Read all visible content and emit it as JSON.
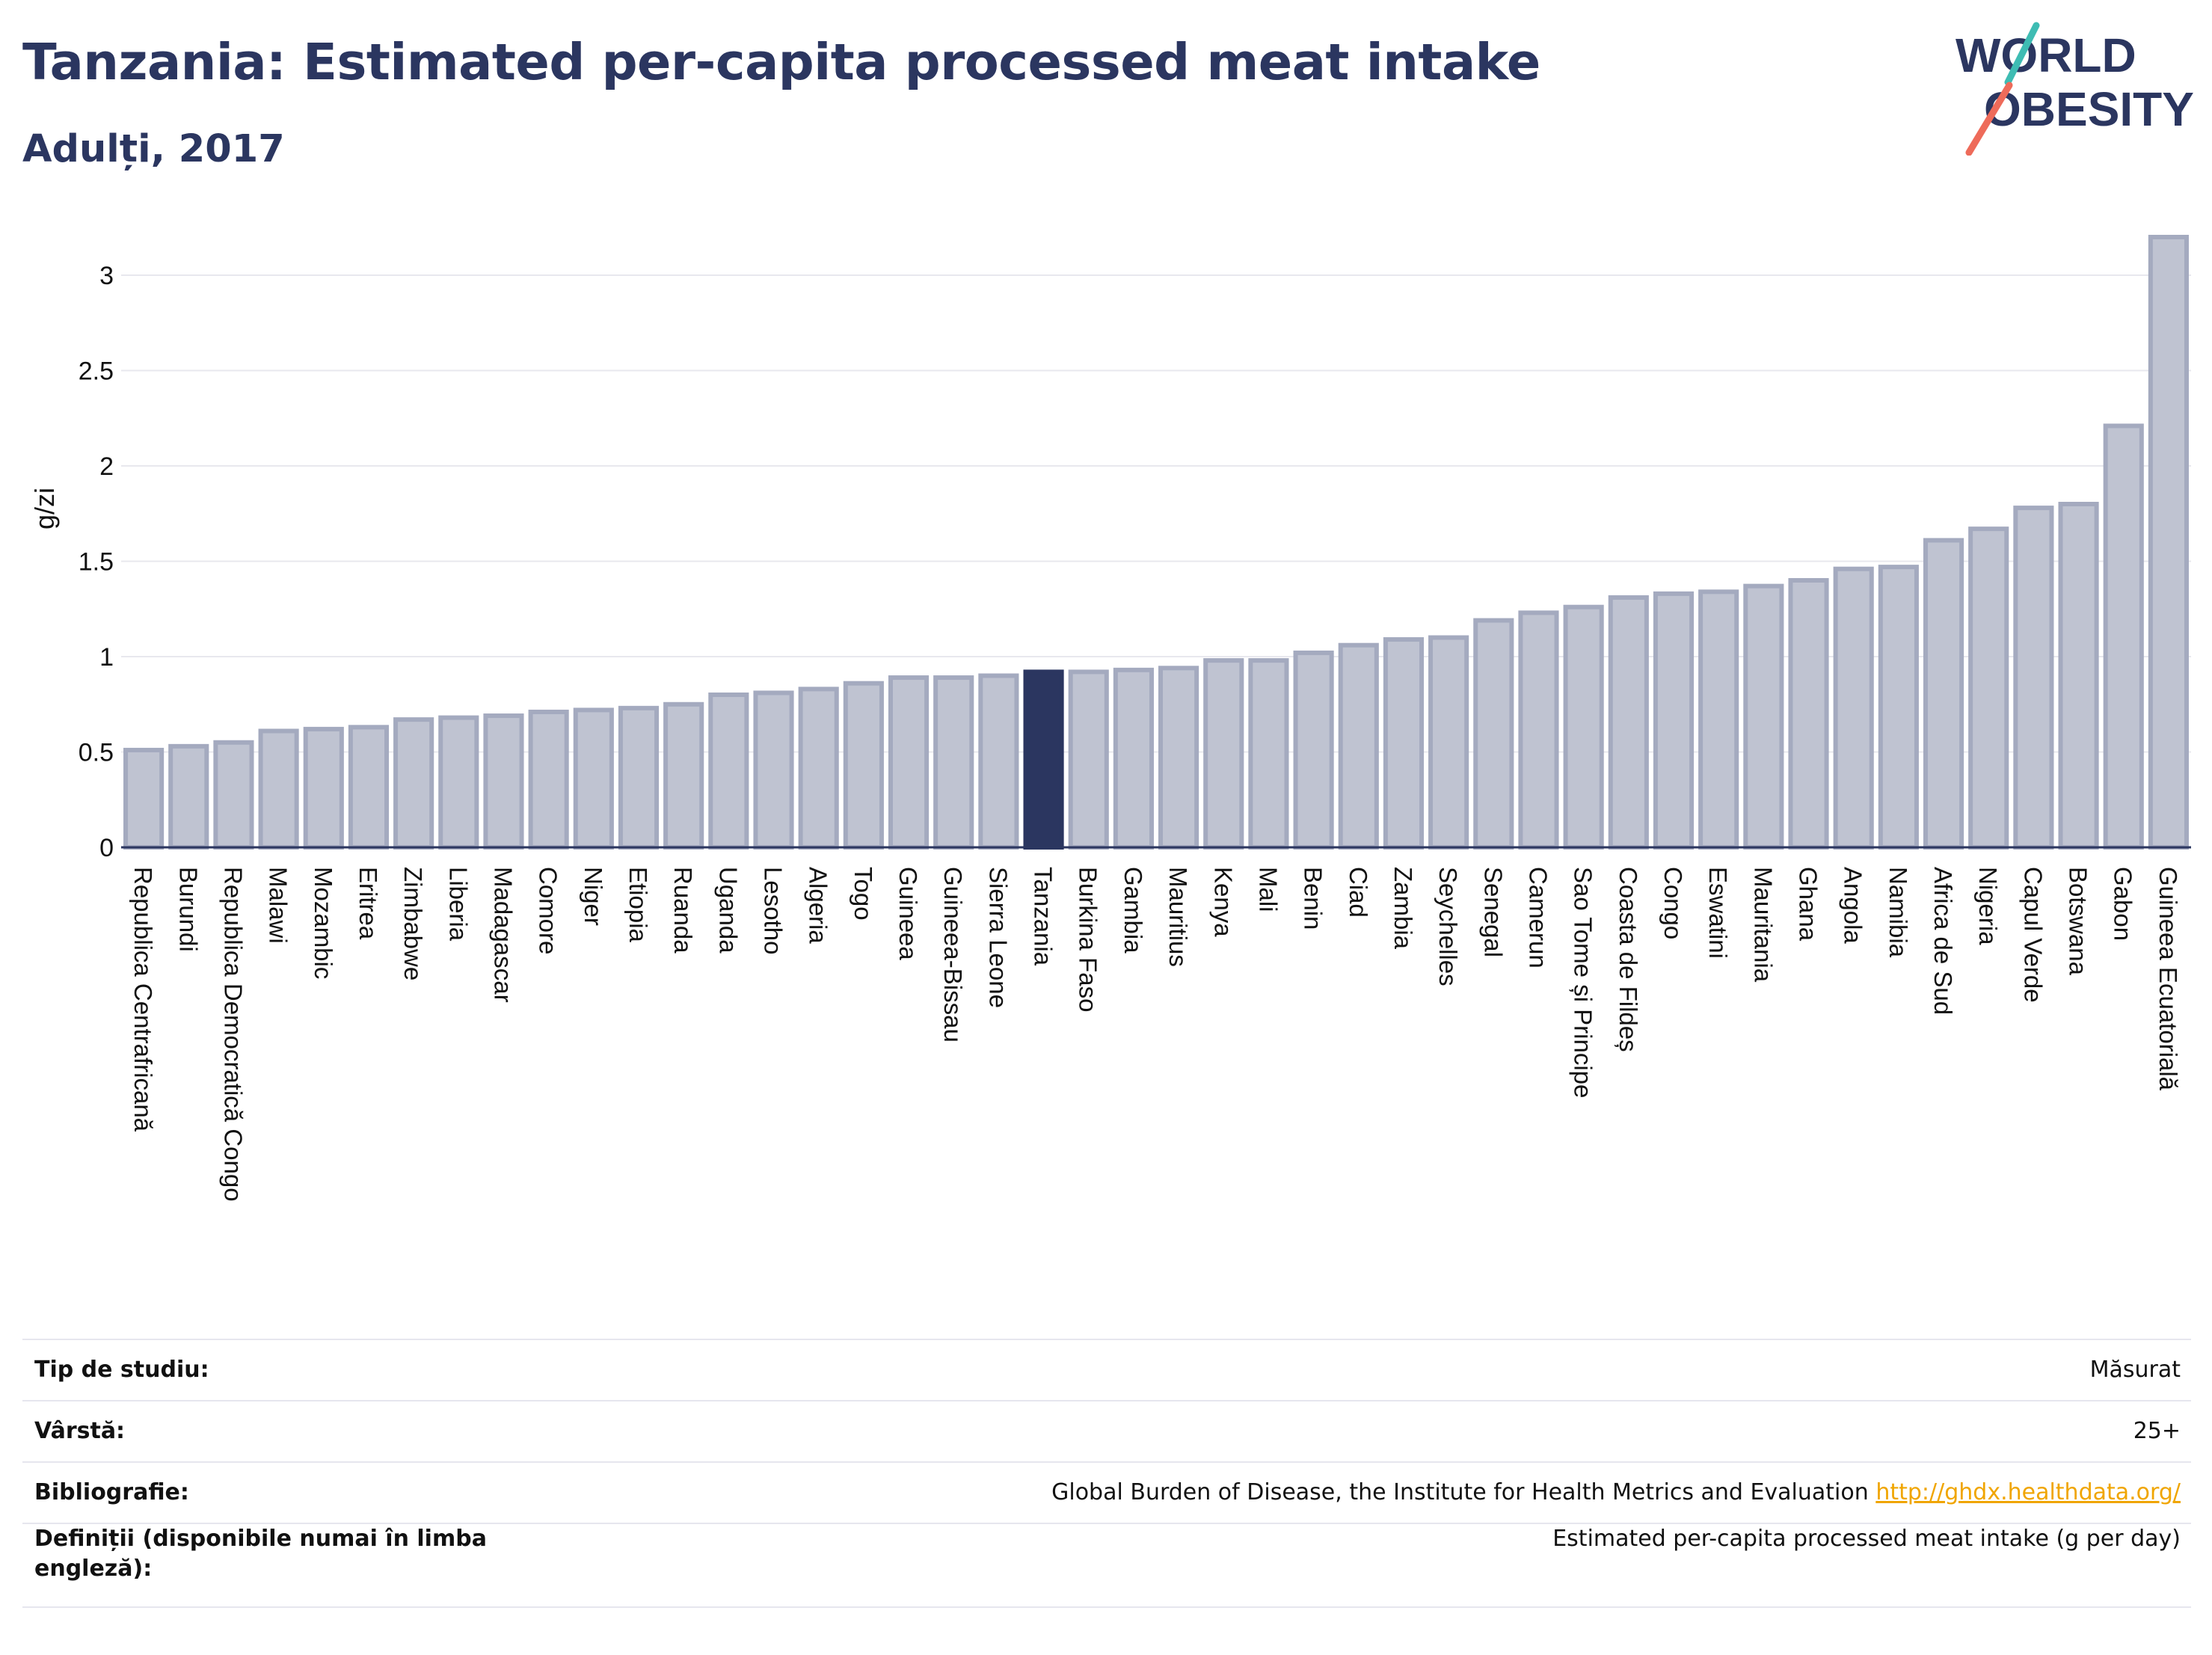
{
  "header": {
    "title": "Tanzania: Estimated per-capita processed meat intake",
    "subtitle": "Adulți, 2017"
  },
  "logo": {
    "line1": "WORLD",
    "line2": "OBESITY",
    "color_text": "#2b3660",
    "color_teal": "#3ebcb3",
    "color_coral": "#ee6b5a"
  },
  "chart_data": {
    "type": "bar",
    "ylabel": "g/zi",
    "xlabel": "",
    "ylim": [
      0,
      3.3
    ],
    "yticks": [
      0,
      0.5,
      1,
      1.5,
      2,
      2.5,
      3
    ],
    "ytick_labels": [
      "0",
      "0.5",
      "1",
      "1.5",
      "2",
      "2.5",
      "3"
    ],
    "grid": true,
    "highlight": "Tanzania",
    "colors": {
      "bar": "#bfc3d1",
      "bar_border": "#a4aabf",
      "highlight": "#2b3660",
      "grid": "#e8e8ee",
      "axis": "#2b3660"
    },
    "categories": [
      "Republica Centrafricană",
      "Burundi",
      "Republica Democratică Congo",
      "Malawi",
      "Mozambic",
      "Eritrea",
      "Zimbabwe",
      "Liberia",
      "Madagascar",
      "Comore",
      "Niger",
      "Etiopia",
      "Ruanda",
      "Uganda",
      "Lesotho",
      "Algeria",
      "Togo",
      "Guineea",
      "Guineea-Bissau",
      "Sierra Leone",
      "Tanzania",
      "Burkina Faso",
      "Gambia",
      "Mauritius",
      "Kenya",
      "Mali",
      "Benin",
      "Ciad",
      "Zambia",
      "Seychelles",
      "Senegal",
      "Camerun",
      "Sao Tome și Principe",
      "Coasta de Fildeș",
      "Congo",
      "Eswatini",
      "Mauritania",
      "Ghana",
      "Angola",
      "Namibia",
      "Africa de Sud",
      "Nigeria",
      "Capul Verde",
      "Botswana",
      "Gabon",
      "Guineea Ecuatorială"
    ],
    "values": [
      0.51,
      0.53,
      0.55,
      0.61,
      0.62,
      0.63,
      0.67,
      0.68,
      0.69,
      0.71,
      0.72,
      0.73,
      0.75,
      0.8,
      0.81,
      0.83,
      0.86,
      0.89,
      0.89,
      0.9,
      0.92,
      0.92,
      0.93,
      0.94,
      0.98,
      0.98,
      1.02,
      1.06,
      1.09,
      1.1,
      1.19,
      1.23,
      1.26,
      1.31,
      1.33,
      1.34,
      1.37,
      1.4,
      1.46,
      1.47,
      1.61,
      1.67,
      1.78,
      1.8,
      2.21,
      3.2
    ]
  },
  "meta": {
    "rows": [
      {
        "label": "Tip de studiu:",
        "value": "Măsurat"
      },
      {
        "label": "Vârstă:",
        "value": "25+"
      },
      {
        "label": "Bibliografie:",
        "value": "Global Burden of Disease, the Institute for Health Metrics and Evaluation",
        "link": "http://ghdx.healthdata.org/"
      },
      {
        "label": "Definiții (disponibile numai în limba engleză):",
        "value": "Estimated per-capita processed meat intake (g per day)"
      }
    ]
  }
}
